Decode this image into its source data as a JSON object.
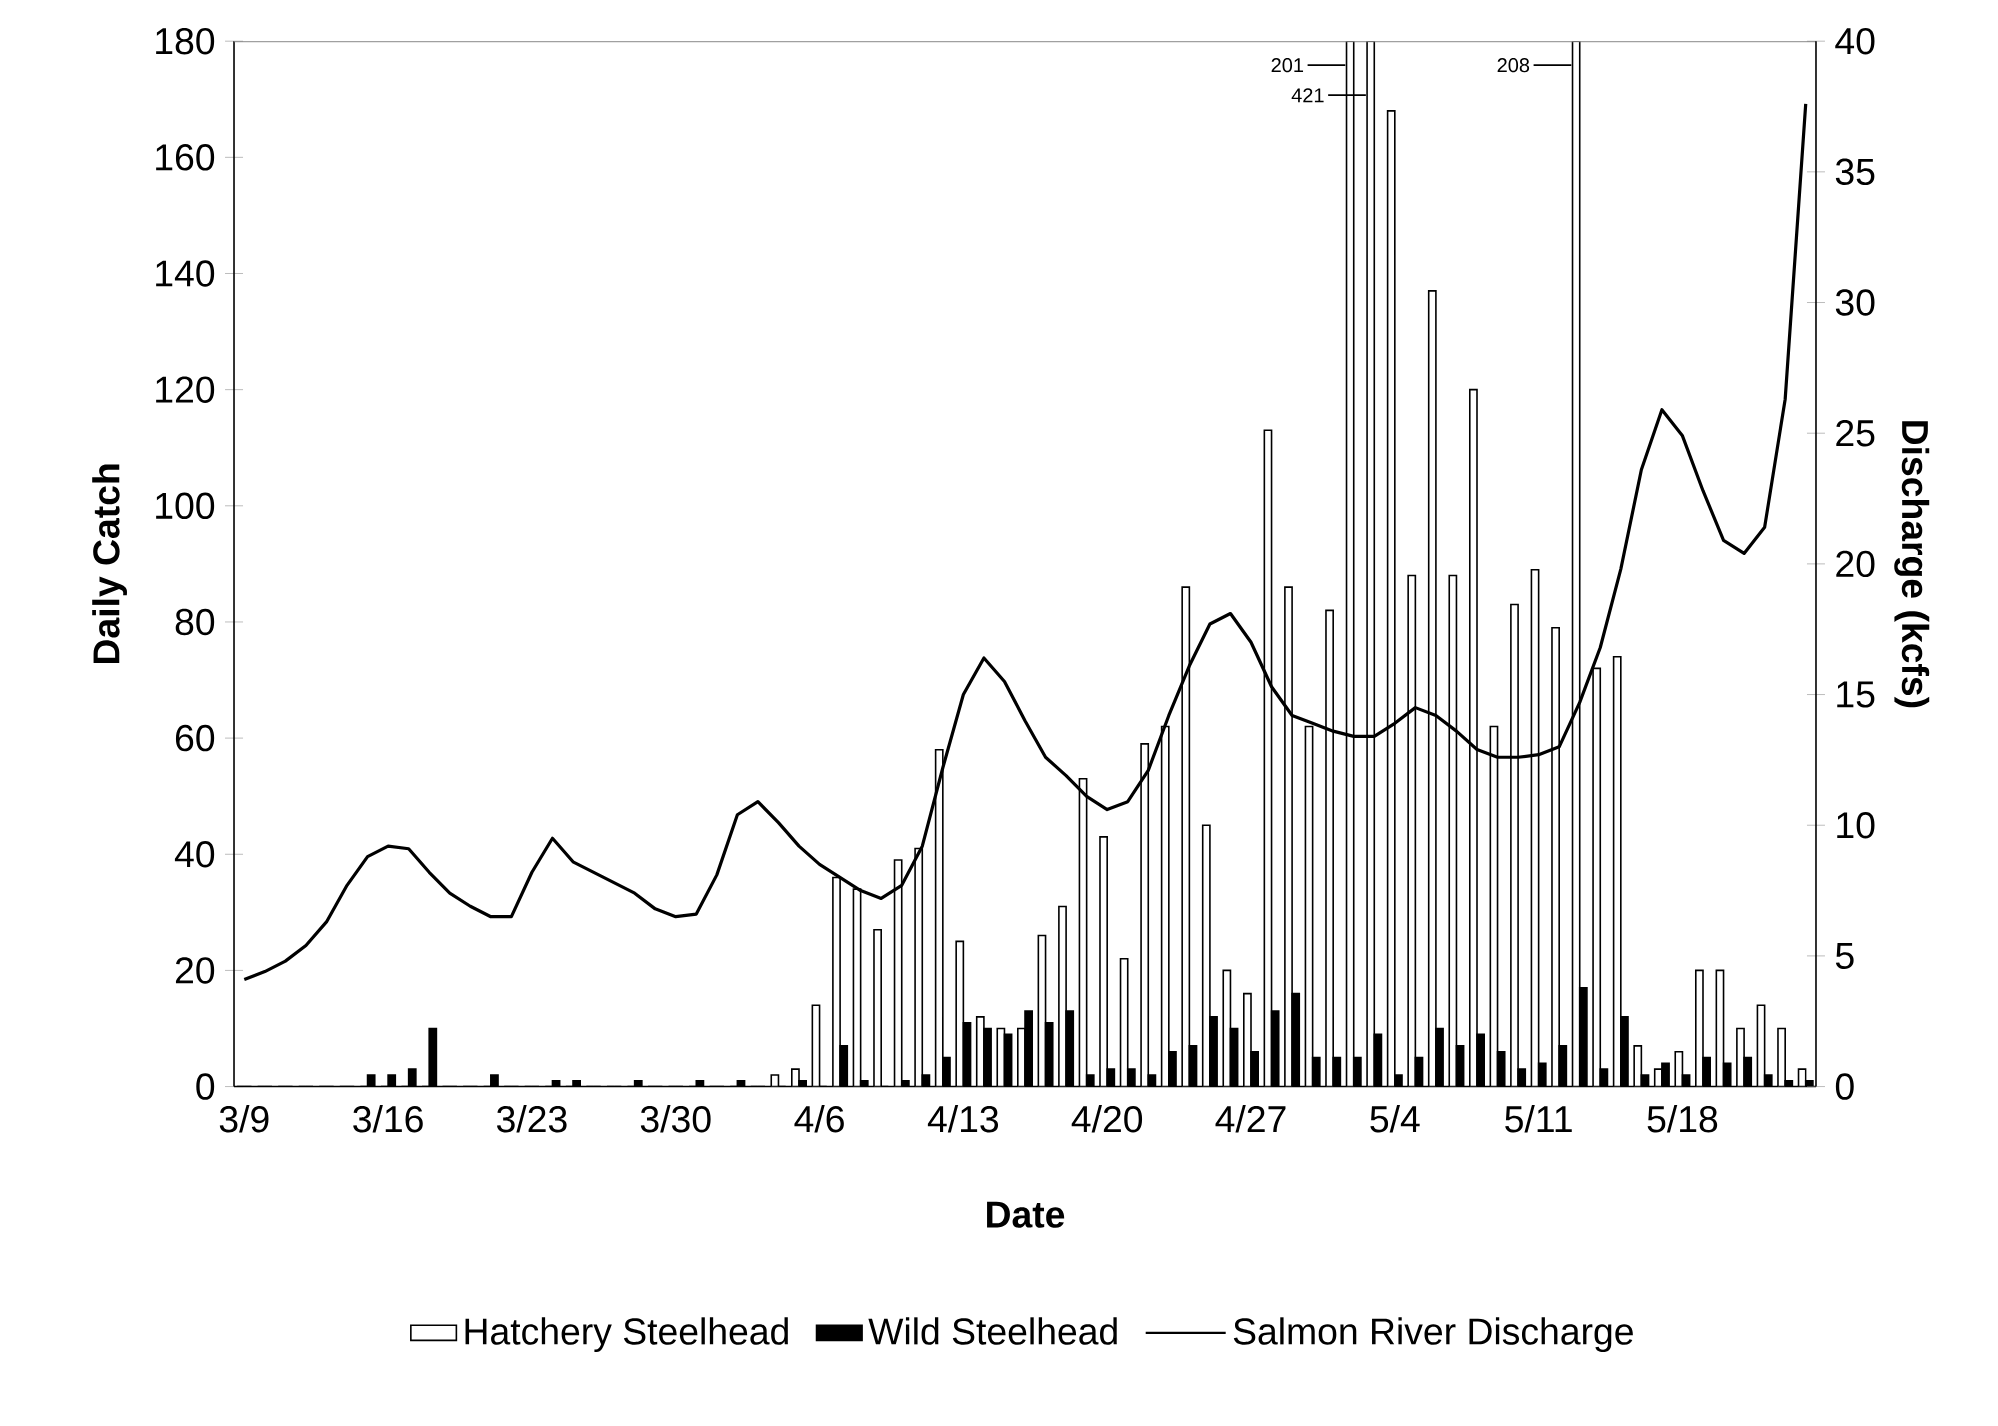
{
  "chart_data": {
    "type": "bar",
    "xlabel": "Date",
    "ylabel": "Daily Catch",
    "y2label": "Discharge (kcfs)",
    "categories": [
      "3/9",
      null,
      null,
      null,
      null,
      null,
      null,
      "3/16",
      null,
      null,
      null,
      null,
      null,
      null,
      "3/23",
      null,
      null,
      null,
      null,
      null,
      null,
      "3/30",
      null,
      null,
      null,
      null,
      null,
      null,
      "4/6",
      null,
      null,
      null,
      null,
      null,
      null,
      "4/13",
      null,
      null,
      null,
      null,
      null,
      null,
      "4/20",
      null,
      null,
      null,
      null,
      null,
      null,
      "4/27",
      null,
      null,
      null,
      null,
      null,
      null,
      "5/4",
      null,
      null,
      null,
      null,
      null,
      null,
      "5/11",
      null,
      null,
      null,
      null,
      null,
      null,
      "5/18",
      null,
      null,
      null,
      null,
      null,
      null
    ],
    "series": [
      {
        "name": "Hatchery Steelhead",
        "color": "#ffffff",
        "values": [
          0,
          0,
          0,
          0,
          0,
          0,
          0,
          0,
          0,
          0,
          0,
          0,
          0,
          0,
          0,
          0,
          0,
          0,
          0,
          0,
          0,
          0,
          0,
          0,
          0,
          0,
          2,
          3,
          14,
          36,
          34,
          27,
          39,
          41,
          58,
          25,
          12,
          10,
          10,
          26,
          31,
          53,
          43,
          22,
          59,
          62,
          86,
          45,
          20,
          16,
          113,
          86,
          62,
          82,
          null,
          null,
          168,
          88,
          137,
          88,
          120,
          62,
          83,
          89,
          79,
          null,
          72,
          74,
          7,
          3,
          6,
          20,
          20,
          10,
          14,
          10,
          3
        ],
        "value_labels": [
          null,
          null,
          null,
          null,
          null,
          null,
          null,
          null,
          null,
          null,
          null,
          null,
          null,
          null,
          null,
          null,
          null,
          null,
          null,
          null,
          null,
          null,
          null,
          null,
          null,
          null,
          null,
          null,
          null,
          null,
          null,
          null,
          null,
          null,
          null,
          null,
          null,
          null,
          null,
          null,
          null,
          null,
          null,
          null,
          null,
          null,
          null,
          null,
          null,
          null,
          null,
          null,
          null,
          null,
          "201",
          "421",
          null,
          null,
          null,
          null,
          null,
          null,
          null,
          null,
          null,
          "208",
          null,
          null,
          null,
          null,
          null,
          null,
          null,
          null,
          null,
          null,
          null
        ]
      },
      {
        "name": "Wild Steelhead",
        "color": "#000000",
        "values": [
          0,
          0,
          0,
          0,
          0,
          0,
          2,
          2,
          3,
          10,
          0,
          0,
          2,
          0,
          0,
          1,
          1,
          0,
          0,
          1,
          0,
          0,
          1,
          0,
          1,
          0,
          0,
          1,
          0,
          7,
          1,
          0,
          1,
          2,
          5,
          11,
          10,
          9,
          13,
          11,
          13,
          2,
          3,
          3,
          2,
          6,
          7,
          12,
          10,
          6,
          13,
          16,
          5,
          5,
          5,
          9,
          2,
          5,
          10,
          7,
          9,
          6,
          3,
          4,
          7,
          17,
          3,
          12,
          2,
          4,
          2,
          5,
          4,
          5,
          2,
          1,
          1
        ]
      },
      {
        "name": "Salmon River Discharge",
        "type": "line",
        "axis": "y2",
        "color": "#000000",
        "values": [
          4.1,
          4.4,
          4.8,
          5.4,
          6.3,
          7.7,
          8.8,
          9.2,
          9.1,
          8.2,
          7.4,
          6.9,
          6.5,
          6.5,
          8.2,
          9.5,
          8.6,
          8.2,
          7.8,
          7.4,
          6.8,
          6.5,
          6.6,
          8.1,
          10.4,
          10.9,
          10.1,
          9.2,
          8.5,
          8.0,
          7.5,
          7.2,
          7.7,
          9.2,
          12.2,
          15.0,
          16.4,
          15.5,
          14.0,
          12.6,
          11.9,
          11.1,
          10.6,
          10.9,
          12.1,
          14.2,
          16.1,
          17.7,
          18.1,
          17.0,
          15.3,
          14.2,
          13.9,
          13.6,
          13.4,
          13.4,
          13.9,
          14.5,
          14.2,
          13.6,
          12.9,
          12.6,
          12.6,
          12.7,
          13.0,
          14.7,
          16.8,
          19.8,
          23.6,
          25.9,
          24.9,
          22.8,
          20.9,
          20.4,
          21.4,
          26.3,
          37.6
        ]
      }
    ],
    "ylim": [
      0,
      180
    ],
    "yticks": [
      0,
      20,
      40,
      60,
      80,
      100,
      120,
      140,
      160,
      180
    ],
    "y2lim": [
      0,
      40
    ],
    "y2ticks": [
      0,
      5,
      10,
      15,
      20,
      25,
      30,
      35,
      40
    ],
    "legend": "bottom"
  }
}
